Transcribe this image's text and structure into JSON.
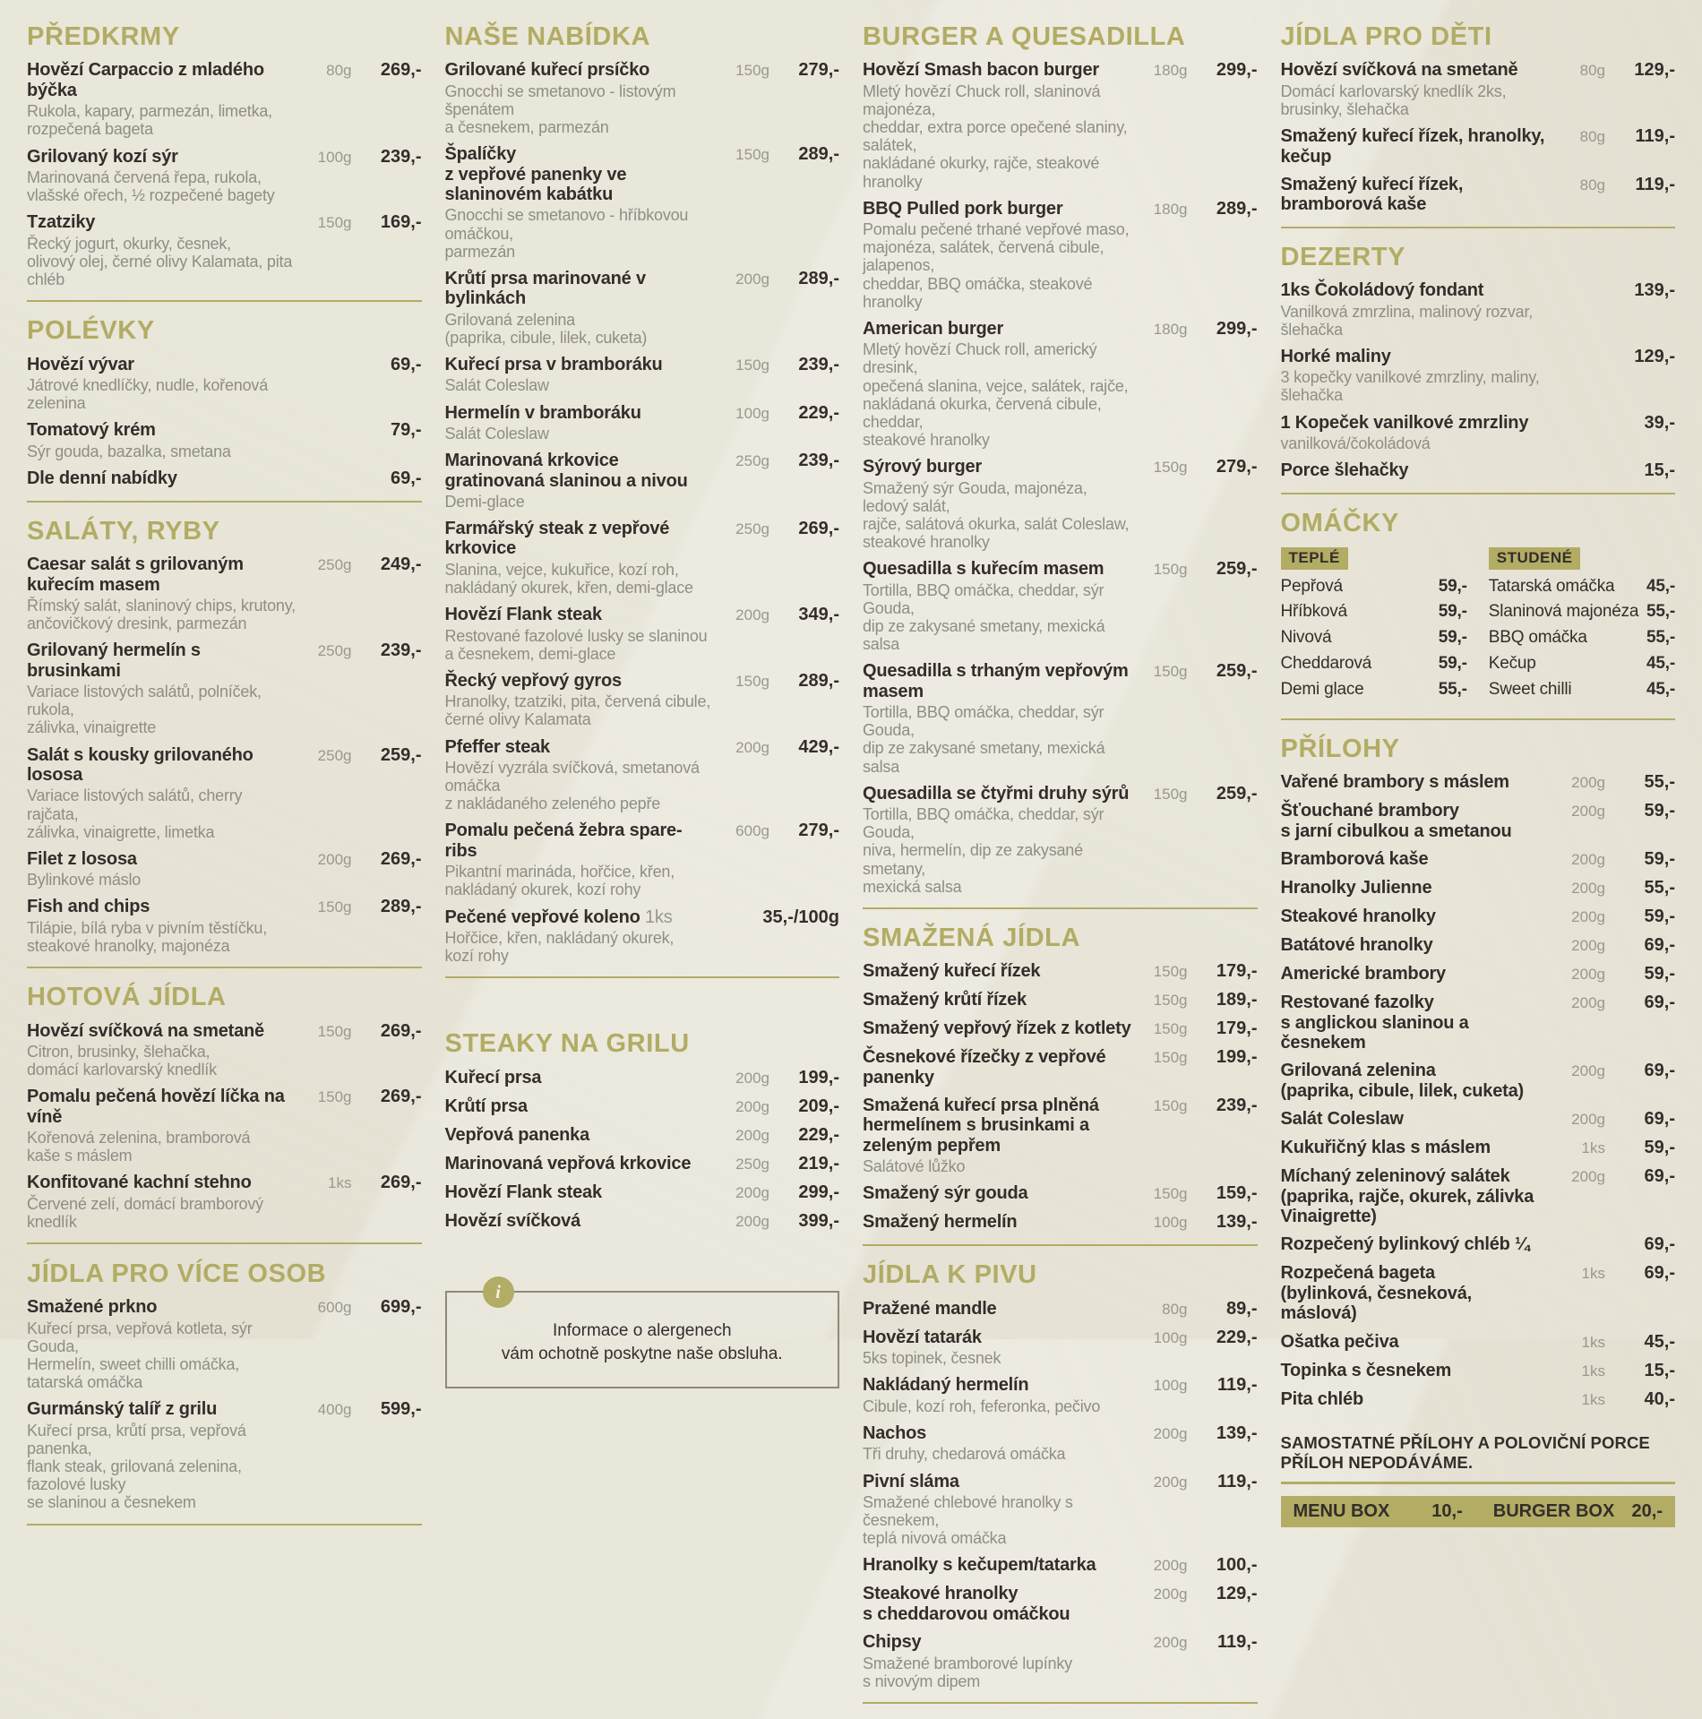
{
  "colors": {
    "accent": "#b2ac64",
    "text": "#332e2a",
    "muted": "#8f8d85",
    "qty": "#9a978c",
    "background": "#e9e6da"
  },
  "info_box": {
    "icon": "i-circle-icon",
    "text": "Informace o alergenech\nvám ochotně poskytne naše obsluha."
  },
  "footer": {
    "note": "SAMOSTATNÉ PŘÍLOHY A POLOVIČNÍ PORCE PŘÍLOH NEPODÁVÁME.",
    "boxes": [
      {
        "label": "MENU BOX",
        "price": "10,-"
      },
      {
        "label": "BURGER BOX",
        "price": "20,-"
      }
    ]
  },
  "columns": [
    {
      "name": "column-1",
      "sections": [
        {
          "key": "predkrmy",
          "title": "PŘEDKRMY",
          "type": "items",
          "divider": true,
          "items": [
            {
              "name": "Hovězí Carpaccio z mladého býčka",
              "desc": "Rukola, kapary, parmezán, limetka,\nrozpečená bageta",
              "qty": "80g",
              "price": "269,-"
            },
            {
              "name": "Grilovaný kozí sýr",
              "desc": "Marinovaná červená řepa, rukola,\nvlašské ořech, ½ rozpečené bagety",
              "qty": "100g",
              "price": "239,-"
            },
            {
              "name": "Tzatziky",
              "desc": "Řecký jogurt, okurky, česnek,\nolivový olej, černé olivy Kalamata, pita chléb",
              "qty": "150g",
              "price": "169,-"
            }
          ]
        },
        {
          "key": "polevky",
          "title": "POLÉVKY",
          "type": "items",
          "divider": true,
          "items": [
            {
              "name": "Hovězí vývar",
              "desc": "Játrové knedlíčky, nudle, kořenová zelenina",
              "qty": "",
              "price": "69,-"
            },
            {
              "name": "Tomatový krém",
              "desc": "Sýr gouda, bazalka, smetana",
              "qty": "",
              "price": "79,-"
            },
            {
              "name": "Dle denní nabídky",
              "qty": "",
              "price": "69,-"
            }
          ]
        },
        {
          "key": "salaty-ryby",
          "title": "SALÁTY, RYBY",
          "type": "items",
          "divider": true,
          "items": [
            {
              "name": "Caesar salát s grilovaným kuřecím masem",
              "desc": "Římský salát, slaninový chips, krutony,\nančovičkový dresink, parmezán",
              "qty": "250g",
              "price": "249,-"
            },
            {
              "name": "Grilovaný hermelín s brusinkami",
              "desc": "Variace listových salátů, polníček, rukola,\nzálivka, vinaigrette",
              "qty": "250g",
              "price": "239,-"
            },
            {
              "name": "Salát s kousky grilovaného lososa",
              "desc": "Variace listových salátů, cherry rajčata,\nzálivka, vinaigrette, limetka",
              "qty": "250g",
              "price": "259,-"
            },
            {
              "name": "Filet z lososa",
              "desc": "Bylinkové máslo",
              "qty": "200g",
              "price": "269,-"
            },
            {
              "name": "Fish and chips",
              "desc": "Tilápie, bílá ryba v pivním těstíčku,\nsteakové hranolky, majonéza",
              "qty": "150g",
              "price": "289,-"
            }
          ]
        },
        {
          "key": "hotova-jidla",
          "title": "HOTOVÁ JÍDLA",
          "type": "items",
          "divider": true,
          "items": [
            {
              "name": "Hovězí svíčková na smetaně",
              "desc": "Citron, brusinky, šlehačka,\ndomácí karlovarský knedlík",
              "qty": "150g",
              "price": "269,-"
            },
            {
              "name": "Pomalu pečená hovězí líčka na víně",
              "desc": "Kořenová zelenina, bramborová\nkaše s máslem",
              "qty": "150g",
              "price": "269,-"
            },
            {
              "name": "Konfitované kachní stehno",
              "desc": "Červené zelí, domácí bramborový knedlík",
              "qty": "1ks",
              "price": "269,-"
            }
          ]
        },
        {
          "key": "jidla-pro-vice-osob",
          "title": "JÍDLA PRO VÍCE OSOB",
          "type": "items",
          "divider": true,
          "gap_before": 18,
          "items": [
            {
              "name": "Smažené prkno",
              "desc": "Kuřecí prsa, vepřová kotleta, sýr Gouda,\nHermelín, sweet chilli omáčka, tatarská omáčka",
              "qty": "600g",
              "price": "699,-"
            },
            {
              "name": "Gurmánský talíř z grilu",
              "desc": "Kuřecí prsa, krůtí prsa, vepřová panenka,\nflank steak, grilovaná zelenina, fazolové lusky\nse slaninou a česnekem",
              "qty": "400g",
              "price": "599,-"
            }
          ]
        }
      ]
    },
    {
      "name": "column-2",
      "sections": [
        {
          "key": "nase-nabidka",
          "title": "NAŠE NABÍDKA",
          "type": "items",
          "divider": true,
          "items": [
            {
              "name": "Grilované kuřecí prsíčko",
              "desc": "Gnocchi se smetanovo - listovým špenátem\na česnekem, parmezán",
              "qty": "150g",
              "price": "279,-"
            },
            {
              "name": "Špalíčky\nz vepřové panenky ve slaninovém kabátku",
              "desc": "Gnocchi se smetanovo - hříbkovou omáčkou,\nparmezán",
              "qty": "150g",
              "price": "289,-"
            },
            {
              "name": "Krůtí prsa marinované v bylinkách",
              "desc": "Grilovaná zelenina\n(paprika, cibule, lilek, cuketa)",
              "qty": "200g",
              "price": "289,-"
            },
            {
              "name": "Kuřecí prsa v bramboráku",
              "desc": "Salát Coleslaw",
              "qty": "150g",
              "price": "239,-"
            },
            {
              "name": "Hermelín v bramboráku",
              "desc": "Salát Coleslaw",
              "qty": "100g",
              "price": "229,-"
            },
            {
              "name": "Marinovaná krkovice\ngratinovaná slaninou a nivou",
              "desc": "Demi-glace",
              "qty": "250g",
              "price": "239,-"
            },
            {
              "name": "Farmářský steak z vepřové krkovice",
              "desc": "Slanina, vejce, kukuřice, kozí roh,\nnakládaný okurek, křen, demi-glace",
              "qty": "250g",
              "price": "269,-"
            },
            {
              "name": "Hovězí Flank steak",
              "desc": "Restované fazolové lusky se slaninou\na česnekem, demi-glace",
              "qty": "200g",
              "price": "349,-"
            },
            {
              "name": "Řecký vepřový gyros",
              "desc": "Hranolky, tzatziki, pita, červená cibule,\nčerné olivy Kalamata",
              "qty": "150g",
              "price": "289,-"
            },
            {
              "name": "Pfeffer steak",
              "desc": "Hovězí vyzrála svíčková, smetanová omáčka\nz nakládaného zeleného pepře",
              "qty": "200g",
              "price": "429,-"
            },
            {
              "name": "Pomalu pečená žebra spare-ribs",
              "desc": "Pikantní marináda, hořčice, křen,\nnakládaný okurek, kozí rohy",
              "qty": "600g",
              "price": "279,-"
            },
            {
              "name": "Pečené vepřové koleno",
              "qty_inline": "1ks",
              "desc": "Hořčice, křen, nakládaný okurek, kozí rohy",
              "qty": "",
              "price": "35,-/100g"
            }
          ]
        },
        {
          "key": "steaky-na-grilu",
          "title": "STEAKY NA GRILU",
          "type": "items",
          "divider": false,
          "gap_before": 58,
          "items": [
            {
              "name": "Kuřecí prsa",
              "qty": "200g",
              "price": "199,-"
            },
            {
              "name": "Krůtí prsa",
              "qty": "200g",
              "price": "209,-"
            },
            {
              "name": "Vepřová panenka",
              "qty": "200g",
              "price": "229,-"
            },
            {
              "name": "Marinovaná vepřová krkovice",
              "qty": "250g",
              "price": "219,-"
            },
            {
              "name": "Hovězí Flank steak",
              "qty": "200g",
              "price": "299,-"
            },
            {
              "name": "Hovězí svíčková",
              "qty": "200g",
              "price": "399,-"
            }
          ]
        },
        {
          "key": "info",
          "type": "info"
        }
      ]
    },
    {
      "name": "column-3",
      "sections": [
        {
          "key": "burger-a-quesadilla",
          "title": "BURGER A QUESADILLA",
          "type": "items",
          "divider": true,
          "items": [
            {
              "name": "Hovězí Smash bacon burger",
              "desc": "Mletý hovězí Chuck roll, slaninová majonéza,\ncheddar, extra porce opečené slaniny, salátek,\nnakládané okurky, rajče, steakové hranolky",
              "qty": "180g",
              "price": "299,-"
            },
            {
              "name": "BBQ Pulled pork burger",
              "desc": "Pomalu pečené trhané vepřové maso,\nmajonéza, salátek, červená cibule, jalapenos,\ncheddar, BBQ omáčka, steakové hranolky",
              "qty": "180g",
              "price": "289,-"
            },
            {
              "name": "American burger",
              "desc": "Mletý hovězí Chuck roll, americký dresink,\nopečená slanina, vejce, salátek, rajče,\nnakládaná okurka, červená cibule, cheddar,\nsteakové hranolky",
              "qty": "180g",
              "price": "299,-"
            },
            {
              "name": "Sýrový burger",
              "desc": "Smažený sýr Gouda, majonéza, ledový salát,\nrajče, salátová okurka, salát Coleslaw,\nsteakové hranolky",
              "qty": "150g",
              "price": "279,-"
            },
            {
              "name": "Quesadilla s kuřecím masem",
              "desc": "Tortilla, BBQ omáčka, cheddar, sýr Gouda,\ndip ze zakysané smetany, mexická salsa",
              "qty": "150g",
              "price": "259,-"
            },
            {
              "name": "Quesadilla s trhaným vepřovým masem",
              "desc": "Tortilla, BBQ omáčka, cheddar, sýr Gouda,\ndip ze zakysané smetany, mexická salsa",
              "qty": "150g",
              "price": "259,-"
            },
            {
              "name": "Quesadilla se čtyřmi druhy sýrů",
              "desc": "Tortilla, BBQ omáčka, cheddar, sýr Gouda,\nniva, hermelín, dip ze zakysané smetany,\nmexická salsa",
              "qty": "150g",
              "price": "259,-"
            }
          ]
        },
        {
          "key": "smazena-jidla",
          "title": "SMAŽENÁ JÍDLA",
          "type": "items",
          "divider": true,
          "items": [
            {
              "name": "Smažený kuřecí řízek",
              "qty": "150g",
              "price": "179,-"
            },
            {
              "name": "Smažený krůtí řízek",
              "qty": "150g",
              "price": "189,-"
            },
            {
              "name": "Smažený vepřový řízek z kotlety",
              "qty": "150g",
              "price": "179,-"
            },
            {
              "name": "Česnekové řízečky z vepřové panenky",
              "qty": "150g",
              "price": "199,-"
            },
            {
              "name": "Smažená kuřecí prsa plněná\nhermelínem s brusinkami a zeleným pepřem",
              "desc": "Salátové lůžko",
              "qty": "150g",
              "price": "239,-"
            },
            {
              "name": "Smažený sýr gouda",
              "qty": "150g",
              "price": "159,-"
            },
            {
              "name": "Smažený hermelín",
              "qty": "100g",
              "price": "139,-"
            }
          ]
        },
        {
          "key": "jidla-k-pivu",
          "title": "JÍDLA K PIVU",
          "type": "items",
          "divider": true,
          "items": [
            {
              "name": "Pražené mandle",
              "qty": "80g",
              "price": "89,-"
            },
            {
              "name": "Hovězí tatarák",
              "desc": "5ks topinek, česnek",
              "qty": "100g",
              "price": "229,-"
            },
            {
              "name": "Nakládaný hermelín",
              "desc": "Cibule, kozí roh, feferonka, pečivo",
              "qty": "100g",
              "price": "119,-"
            },
            {
              "name": "Nachos",
              "desc": "Tři druhy, chedarová omáčka",
              "qty": "200g",
              "price": "139,-"
            },
            {
              "name": "Pivní sláma",
              "desc": "Smažené chlebové hranolky s česnekem,\nteplá nivová omáčka",
              "qty": "200g",
              "price": "119,-"
            },
            {
              "name": "Hranolky s kečupem/tatarka",
              "qty": "200g",
              "price": "100,-"
            },
            {
              "name": "Steakové hranolky\ns cheddarovou omáčkou",
              "qty": "200g",
              "price": "129,-"
            },
            {
              "name": "Chipsy",
              "desc": "Smažené bramborové lupínky\ns nivovým dipem",
              "qty": "200g",
              "price": "119,-"
            }
          ]
        }
      ]
    },
    {
      "name": "column-4",
      "sections": [
        {
          "key": "jidla-pro-deti",
          "title": "JÍDLA PRO DĚTI",
          "type": "items",
          "divider": true,
          "items": [
            {
              "name": "Hovězí svíčková na smetaně",
              "desc": "Domácí karlovarský knedlík 2ks,\nbrusinky, šlehačka",
              "qty": "80g",
              "price": "129,-"
            },
            {
              "name": "Smažený kuřecí řízek, hranolky, kečup",
              "qty": "80g",
              "price": "119,-"
            },
            {
              "name": "Smažený kuřecí řízek, bramborová kaše",
              "qty": "80g",
              "price": "119,-"
            }
          ]
        },
        {
          "key": "dezerty",
          "title": "DEZERTY",
          "type": "items",
          "divider": true,
          "gap_before": 16,
          "items": [
            {
              "name": "1ks Čokoládový fondant",
              "desc": "Vanilková zmrzlina, malinový rozvar, šlehačka",
              "qty": "",
              "price": "139,-"
            },
            {
              "name": "Horké maliny",
              "desc": "3 kopečky vanilkové zmrzliny, maliny, šlehačka",
              "qty": "",
              "price": "129,-"
            },
            {
              "name": "1 Kopeček vanilkové zmrzliny",
              "desc": "vanilková/čokoládová",
              "qty": "",
              "price": "39,-"
            },
            {
              "name": "Porce šlehačky",
              "qty": "",
              "price": "15,-"
            }
          ]
        },
        {
          "key": "omacky",
          "title": "OMÁČKY",
          "type": "sauces",
          "divider": true,
          "groups": [
            {
              "label": "TEPLÉ",
              "items": [
                {
                  "name": "Pepřová",
                  "price": "59,-"
                },
                {
                  "name": "Hříbková",
                  "price": "59,-"
                },
                {
                  "name": "Nivová",
                  "price": "59,-"
                },
                {
                  "name": "Cheddarová",
                  "price": "59,-"
                },
                {
                  "name": "Demi glace",
                  "price": "55,-"
                }
              ]
            },
            {
              "label": "STUDENÉ",
              "items": [
                {
                  "name": "Tatarská omáčka",
                  "price": "45,-"
                },
                {
                  "name": "Slaninová majonéza",
                  "price": "55,-"
                },
                {
                  "name": "BBQ omáčka",
                  "price": "55,-"
                },
                {
                  "name": "Kečup",
                  "price": "45,-"
                },
                {
                  "name": "Sweet chilli",
                  "price": "45,-"
                }
              ]
            }
          ]
        },
        {
          "key": "prilohy",
          "title": "PŘÍLOHY",
          "type": "items",
          "divider": false,
          "items": [
            {
              "name": "Vařené brambory s máslem",
              "qty": "200g",
              "price": "55,-"
            },
            {
              "name": "Šťouchané brambory\ns jarní cibulkou a smetanou",
              "qty": "200g",
              "price": "59,-"
            },
            {
              "name": "Bramborová kaše",
              "qty": "200g",
              "price": "59,-"
            },
            {
              "name": "Hranolky Julienne",
              "qty": "200g",
              "price": "55,-"
            },
            {
              "name": "Steakové hranolky",
              "qty": "200g",
              "price": "59,-"
            },
            {
              "name": "Batátové hranolky",
              "qty": "200g",
              "price": "69,-"
            },
            {
              "name": "Americké brambory",
              "qty": "200g",
              "price": "59,-"
            },
            {
              "name": "Restované fazolky\ns anglickou slaninou a česnekem",
              "qty": "200g",
              "price": "69,-"
            },
            {
              "name": "Grilovaná zelenina\n(paprika, cibule, lilek, cuketa)",
              "qty": "200g",
              "price": "69,-"
            },
            {
              "name": "Salát Coleslaw",
              "qty": "200g",
              "price": "69,-"
            },
            {
              "name": "Kukuřičný klas s máslem",
              "qty": "1ks",
              "price": "59,-"
            },
            {
              "name": "Míchaný zeleninový salátek\n(paprika, rajče, okurek, zálivka Vinaigrette)",
              "qty": "200g",
              "price": "69,-"
            },
            {
              "name": "Rozpečený bylinkový chléb ¼",
              "qty": "",
              "price": "69,-"
            },
            {
              "name": "Rozpečená bageta\n(bylinková, česneková, máslová)",
              "qty": "1ks",
              "price": "69,-"
            },
            {
              "name": "Ošatka pečiva",
              "qty": "1ks",
              "price": "45,-"
            },
            {
              "name": "Topinka s česnekem",
              "qty": "1ks",
              "price": "15,-"
            },
            {
              "name": "Pita chléb",
              "qty": "1ks",
              "price": "40,-"
            }
          ]
        },
        {
          "key": "footer",
          "type": "footer"
        }
      ]
    }
  ]
}
